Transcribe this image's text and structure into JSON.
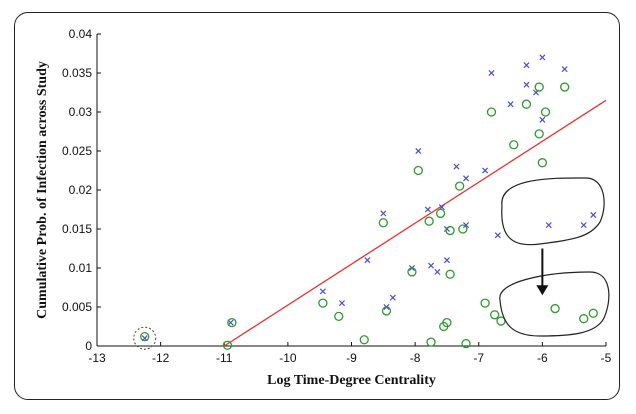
{
  "chart_data": {
    "type": "scatter",
    "title": "",
    "xlabel": "Log Time-Degree Centrality",
    "ylabel": "Cumulative Prob. of Infection across Study",
    "xlim": [
      -13,
      -5
    ],
    "ylim": [
      0,
      0.04
    ],
    "x_ticks": [
      "-13",
      "-12",
      "-11",
      "-10",
      "-9",
      "-8",
      "-7",
      "-6",
      "-5"
    ],
    "y_ticks": [
      "0",
      "0.005",
      "0.01",
      "0.015",
      "0.02",
      "0.025",
      "0.03",
      "0.035",
      "0.04"
    ],
    "grid": false,
    "legend": "none",
    "series": [
      {
        "marker": "x",
        "color": "#4b4bd8",
        "points": [
          [
            -12.25,
            0.001
          ],
          [
            -10.9,
            0.003
          ],
          [
            -9.45,
            0.007
          ],
          [
            -9.15,
            0.0055
          ],
          [
            -8.75,
            0.011
          ],
          [
            -8.5,
            0.017
          ],
          [
            -8.45,
            0.005
          ],
          [
            -8.35,
            0.0062
          ],
          [
            -8.05,
            0.01
          ],
          [
            -7.95,
            0.025
          ],
          [
            -7.8,
            0.0175
          ],
          [
            -7.75,
            0.0103
          ],
          [
            -7.65,
            0.0095
          ],
          [
            -7.58,
            0.0178
          ],
          [
            -7.5,
            0.011
          ],
          [
            -7.5,
            0.015
          ],
          [
            -7.35,
            0.023
          ],
          [
            -7.2,
            0.0215
          ],
          [
            -7.2,
            0.0155
          ],
          [
            -6.9,
            0.0225
          ],
          [
            -6.8,
            0.035
          ],
          [
            -6.5,
            0.031
          ],
          [
            -6.25,
            0.036
          ],
          [
            -6.25,
            0.0335
          ],
          [
            -6.1,
            0.0325
          ],
          [
            -6.0,
            0.037
          ],
          [
            -6.0,
            0.029
          ],
          [
            -5.65,
            0.0355
          ],
          [
            -6.7,
            0.0142
          ],
          [
            -5.9,
            0.0155
          ],
          [
            -5.35,
            0.0155
          ],
          [
            -5.2,
            0.0168
          ]
        ]
      },
      {
        "marker": "o",
        "color": "#2e9a2e",
        "points": [
          [
            -12.25,
            0.0012
          ],
          [
            -10.88,
            0.003
          ],
          [
            -10.95,
            0.0001
          ],
          [
            -9.45,
            0.0055
          ],
          [
            -9.2,
            0.0038
          ],
          [
            -8.8,
            0.0008
          ],
          [
            -8.5,
            0.0158
          ],
          [
            -8.45,
            0.0045
          ],
          [
            -8.05,
            0.0095
          ],
          [
            -7.95,
            0.0225
          ],
          [
            -7.78,
            0.016
          ],
          [
            -7.75,
            0.0005
          ],
          [
            -7.6,
            0.017
          ],
          [
            -7.55,
            0.0025
          ],
          [
            -7.5,
            0.003
          ],
          [
            -7.45,
            0.0092
          ],
          [
            -7.45,
            0.0148
          ],
          [
            -7.3,
            0.0205
          ],
          [
            -7.25,
            0.015
          ],
          [
            -7.2,
            0.0003
          ],
          [
            -6.9,
            0.0055
          ],
          [
            -6.75,
            0.004
          ],
          [
            -6.8,
            0.03
          ],
          [
            -6.45,
            0.0258
          ],
          [
            -6.25,
            0.031
          ],
          [
            -6.05,
            0.0332
          ],
          [
            -6.05,
            0.0272
          ],
          [
            -6.0,
            0.0235
          ],
          [
            -5.95,
            0.03
          ],
          [
            -5.65,
            0.0332
          ],
          [
            -6.65,
            0.0032
          ],
          [
            -5.8,
            0.0048
          ],
          [
            -5.35,
            0.0035
          ],
          [
            -5.2,
            0.0042
          ]
        ]
      }
    ],
    "fit_line": {
      "color": "#e8312f",
      "x": [
        -11.0,
        -5.0
      ],
      "y": [
        0.0,
        0.0315
      ]
    },
    "annotations": [
      {
        "type": "dashed-circle",
        "at": [
          -12.25,
          0.001
        ]
      },
      {
        "type": "outline",
        "label": "upper-cluster"
      },
      {
        "type": "outline",
        "label": "lower-cluster"
      },
      {
        "type": "arrow",
        "from": [
          -6.0,
          0.0125
        ],
        "to": [
          -6.0,
          0.0065
        ]
      }
    ]
  }
}
